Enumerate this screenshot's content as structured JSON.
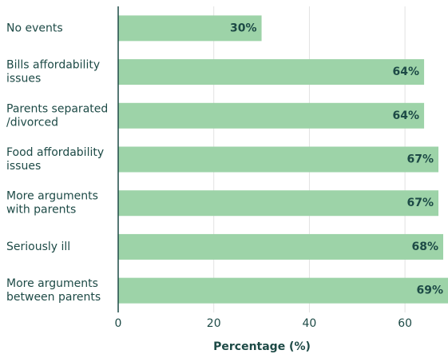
{
  "chart_data": {
    "type": "barh",
    "categories": [
      "No events",
      "Bills affordability\nissues",
      "Parents separated\n/divorced",
      "Food affordability\nissues",
      "More arguments\nwith parents",
      "Seriously ill",
      "More arguments\nbetween parents"
    ],
    "values": [
      30,
      64,
      64,
      67,
      67,
      68,
      69
    ],
    "value_labels": [
      "30%",
      "64%",
      "64%",
      "67%",
      "67%",
      "68%",
      "69%"
    ],
    "color": "#9dd3a8",
    "xlabel": "Percentage (%)",
    "xlim": [
      0,
      69
    ],
    "xticks": [
      0,
      20,
      40,
      60
    ],
    "grid": true
  }
}
